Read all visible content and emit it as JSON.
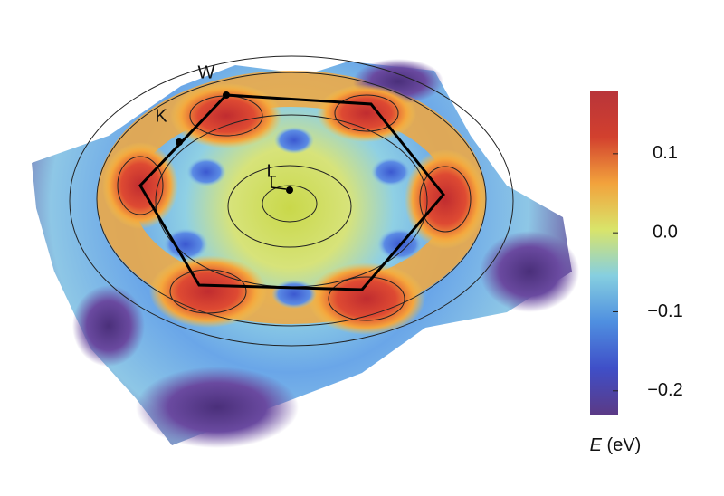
{
  "chart_data": {
    "type": "surface",
    "points": [
      {
        "label": "W"
      },
      {
        "label": "K"
      },
      {
        "label": "L"
      }
    ],
    "colorbar": {
      "symbol": "E",
      "unit": "(eV)",
      "clim": [
        -0.23,
        0.18
      ],
      "ticks": [
        0.1,
        {
          "value": 0,
          "label": "0.0"
        },
        {
          "value": -0.1,
          "label": "−0.1"
        },
        {
          "value": -0.2,
          "label": "−0.2"
        }
      ],
      "colormap": [
        "#5b3a86",
        "#3f4fc8",
        "#4f8fe0",
        "#86cfe0",
        "#d9e46a",
        "#f2a23c",
        "#d2402e",
        "#b8343a"
      ]
    }
  }
}
